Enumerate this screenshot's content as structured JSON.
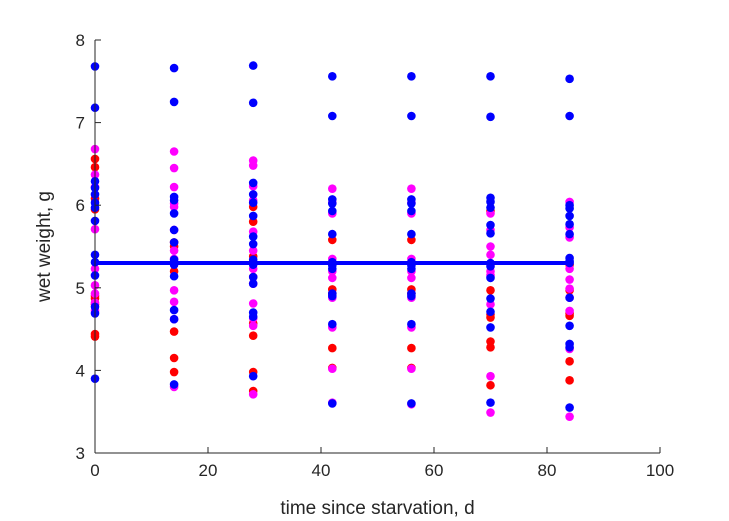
{
  "chart_data": {
    "type": "scatter",
    "xlabel": "time since starvation, d",
    "ylabel": "wet weight, g",
    "xlim": [
      0,
      100
    ],
    "ylim": [
      3,
      8
    ],
    "xticks": [
      0,
      20,
      40,
      60,
      80,
      100
    ],
    "yticks": [
      3,
      4,
      5,
      6,
      7,
      8
    ],
    "grid": false,
    "box": "left-bottom axes only",
    "colors": {
      "series_red": "#ff0000",
      "series_magenta": "#ff00ff",
      "series_blue": "#0000ff",
      "fit_line": "#0000ff",
      "axis": "#262626"
    },
    "series": [
      {
        "color": "#ff0000",
        "points": [
          [
            0,
            6.56
          ],
          [
            0,
            6.46
          ],
          [
            0,
            6.08
          ],
          [
            0,
            5.95
          ],
          [
            0,
            4.9
          ],
          [
            0,
            4.87
          ],
          [
            0,
            4.8
          ],
          [
            0,
            4.44
          ],
          [
            0,
            4.41
          ],
          [
            14,
            5.55
          ],
          [
            14,
            5.5
          ],
          [
            14,
            5.3
          ],
          [
            14,
            5.2
          ],
          [
            14,
            4.47
          ],
          [
            14,
            4.15
          ],
          [
            14,
            3.98
          ],
          [
            28,
            5.98
          ],
          [
            28,
            5.8
          ],
          [
            28,
            5.38
          ],
          [
            28,
            5.13
          ],
          [
            28,
            4.57
          ],
          [
            28,
            4.42
          ],
          [
            28,
            3.98
          ],
          [
            28,
            3.75
          ],
          [
            42,
            5.58
          ],
          [
            42,
            5.3
          ],
          [
            42,
            4.98
          ],
          [
            42,
            4.93
          ],
          [
            42,
            4.27
          ],
          [
            42,
            4.03
          ],
          [
            56,
            5.58
          ],
          [
            56,
            5.31
          ],
          [
            56,
            4.98
          ],
          [
            56,
            4.93
          ],
          [
            56,
            4.27
          ],
          [
            56,
            4.03
          ],
          [
            70,
            5.93
          ],
          [
            70,
            5.28
          ],
          [
            70,
            4.97
          ],
          [
            70,
            4.68
          ],
          [
            70,
            4.64
          ],
          [
            70,
            4.35
          ],
          [
            70,
            4.28
          ],
          [
            70,
            3.82
          ],
          [
            84,
            5.28
          ],
          [
            84,
            4.97
          ],
          [
            84,
            4.69
          ],
          [
            84,
            4.66
          ],
          [
            84,
            4.11
          ],
          [
            84,
            3.88
          ]
        ]
      },
      {
        "color": "#ff00ff",
        "points": [
          [
            0,
            6.68
          ],
          [
            0,
            6.37
          ],
          [
            0,
            6.22
          ],
          [
            0,
            5.71
          ],
          [
            0,
            5.23
          ],
          [
            0,
            5.03
          ],
          [
            0,
            4.93
          ],
          [
            0,
            4.82
          ],
          [
            0,
            4.72
          ],
          [
            14,
            6.65
          ],
          [
            14,
            6.45
          ],
          [
            14,
            6.22
          ],
          [
            14,
            6.02
          ],
          [
            14,
            5.98
          ],
          [
            14,
            5.7
          ],
          [
            14,
            5.45
          ],
          [
            14,
            5.35
          ],
          [
            14,
            4.97
          ],
          [
            14,
            4.83
          ],
          [
            14,
            4.62
          ],
          [
            14,
            3.8
          ],
          [
            28,
            6.54
          ],
          [
            28,
            6.48
          ],
          [
            28,
            6.23
          ],
          [
            28,
            6.06
          ],
          [
            28,
            5.68
          ],
          [
            28,
            5.45
          ],
          [
            28,
            5.23
          ],
          [
            28,
            5.05
          ],
          [
            28,
            4.81
          ],
          [
            28,
            4.63
          ],
          [
            28,
            4.54
          ],
          [
            28,
            3.71
          ],
          [
            42,
            6.2
          ],
          [
            42,
            6.03
          ],
          [
            42,
            5.9
          ],
          [
            42,
            5.35
          ],
          [
            42,
            5.2
          ],
          [
            42,
            5.12
          ],
          [
            42,
            4.88
          ],
          [
            42,
            4.52
          ],
          [
            42,
            4.02
          ],
          [
            42,
            3.61
          ],
          [
            56,
            6.2
          ],
          [
            56,
            6.03
          ],
          [
            56,
            5.9
          ],
          [
            56,
            5.35
          ],
          [
            56,
            5.2
          ],
          [
            56,
            5.12
          ],
          [
            56,
            4.88
          ],
          [
            56,
            4.52
          ],
          [
            56,
            4.02
          ],
          [
            56,
            3.59
          ],
          [
            70,
            5.9
          ],
          [
            70,
            5.7
          ],
          [
            70,
            5.5
          ],
          [
            70,
            5.4
          ],
          [
            70,
            5.2
          ],
          [
            70,
            5.15
          ],
          [
            70,
            4.8
          ],
          [
            70,
            3.93
          ],
          [
            70,
            3.49
          ],
          [
            84,
            6.04
          ],
          [
            84,
            5.73
          ],
          [
            84,
            5.61
          ],
          [
            84,
            5.23
          ],
          [
            84,
            5.1
          ],
          [
            84,
            4.99
          ],
          [
            84,
            4.88
          ],
          [
            84,
            4.72
          ],
          [
            84,
            4.26
          ],
          [
            84,
            3.44
          ]
        ]
      },
      {
        "color": "#0000ff",
        "points": [
          [
            0,
            7.68
          ],
          [
            0,
            7.18
          ],
          [
            0,
            6.29
          ],
          [
            0,
            6.21
          ],
          [
            0,
            6.13
          ],
          [
            0,
            6.03
          ],
          [
            0,
            5.97
          ],
          [
            0,
            5.81
          ],
          [
            0,
            5.4
          ],
          [
            0,
            5.31
          ],
          [
            0,
            5.15
          ],
          [
            0,
            4.77
          ],
          [
            0,
            4.69
          ],
          [
            0,
            3.9
          ],
          [
            14,
            7.66
          ],
          [
            14,
            7.25
          ],
          [
            14,
            6.1
          ],
          [
            14,
            6.06
          ],
          [
            14,
            5.9
          ],
          [
            14,
            5.7
          ],
          [
            14,
            5.55
          ],
          [
            14,
            5.34
          ],
          [
            14,
            5.28
          ],
          [
            14,
            5.14
          ],
          [
            14,
            4.73
          ],
          [
            14,
            4.62
          ],
          [
            14,
            3.83
          ],
          [
            28,
            7.69
          ],
          [
            28,
            7.24
          ],
          [
            28,
            6.27
          ],
          [
            28,
            6.13
          ],
          [
            28,
            6.03
          ],
          [
            28,
            5.87
          ],
          [
            28,
            5.62
          ],
          [
            28,
            5.53
          ],
          [
            28,
            5.34
          ],
          [
            28,
            5.28
          ],
          [
            28,
            5.13
          ],
          [
            28,
            5.05
          ],
          [
            28,
            4.7
          ],
          [
            28,
            4.65
          ],
          [
            28,
            3.93
          ],
          [
            42,
            7.56
          ],
          [
            42,
            7.08
          ],
          [
            42,
            6.07
          ],
          [
            42,
            6.02
          ],
          [
            42,
            5.93
          ],
          [
            42,
            5.65
          ],
          [
            42,
            5.31
          ],
          [
            42,
            5.27
          ],
          [
            42,
            5.23
          ],
          [
            42,
            4.93
          ],
          [
            42,
            4.9
          ],
          [
            42,
            4.56
          ],
          [
            42,
            3.6
          ],
          [
            56,
            7.56
          ],
          [
            56,
            7.08
          ],
          [
            56,
            6.07
          ],
          [
            56,
            6.02
          ],
          [
            56,
            5.93
          ],
          [
            56,
            5.65
          ],
          [
            56,
            5.31
          ],
          [
            56,
            5.27
          ],
          [
            56,
            5.23
          ],
          [
            56,
            4.93
          ],
          [
            56,
            4.9
          ],
          [
            56,
            4.56
          ],
          [
            56,
            3.6
          ],
          [
            70,
            7.56
          ],
          [
            70,
            7.07
          ],
          [
            70,
            6.09
          ],
          [
            70,
            6.04
          ],
          [
            70,
            5.97
          ],
          [
            70,
            5.76
          ],
          [
            70,
            5.66
          ],
          [
            70,
            5.3
          ],
          [
            70,
            5.26
          ],
          [
            70,
            5.12
          ],
          [
            70,
            4.87
          ],
          [
            70,
            4.71
          ],
          [
            70,
            4.52
          ],
          [
            70,
            3.61
          ],
          [
            84,
            7.53
          ],
          [
            84,
            7.08
          ],
          [
            84,
            6.0
          ],
          [
            84,
            5.96
          ],
          [
            84,
            5.87
          ],
          [
            84,
            5.77
          ],
          [
            84,
            5.65
          ],
          [
            84,
            5.36
          ],
          [
            84,
            5.32
          ],
          [
            84,
            5.3
          ],
          [
            84,
            4.88
          ],
          [
            84,
            4.54
          ],
          [
            84,
            4.32
          ],
          [
            84,
            4.28
          ],
          [
            84,
            3.55
          ]
        ]
      }
    ],
    "fit_line": {
      "type": "horizontal",
      "y": 5.3,
      "x": [
        0,
        84
      ],
      "color": "#0000ff"
    }
  }
}
